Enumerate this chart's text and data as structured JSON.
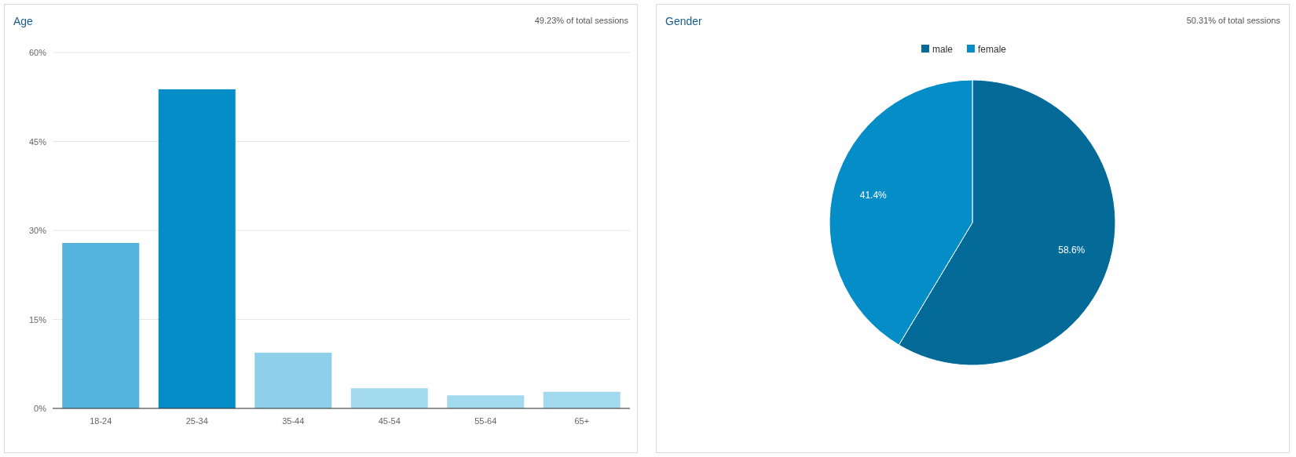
{
  "chart_data": [
    {
      "type": "bar",
      "title": "Age",
      "subtitle": "49.23% of total sessions",
      "categories": [
        "18-24",
        "25-34",
        "35-44",
        "45-54",
        "55-64",
        "65+"
      ],
      "values": [
        27.9,
        53.8,
        9.4,
        3.4,
        2.2,
        2.8
      ],
      "colors": [
        "#55b3dd",
        "#058dc7",
        "#8ecfe9",
        "#a4daef",
        "#a4daef",
        "#a4daef"
      ],
      "ylim": [
        0,
        60
      ],
      "yticks": [
        {
          "value": 0,
          "label": "0%"
        },
        {
          "value": 15,
          "label": "15%"
        },
        {
          "value": 30,
          "label": "30%"
        },
        {
          "value": 45,
          "label": "45%"
        },
        {
          "value": 60,
          "label": "60%"
        }
      ],
      "grid": "y"
    },
    {
      "type": "pie",
      "title": "Gender",
      "subtitle": "50.31% of total sessions",
      "categories": [
        "male",
        "female"
      ],
      "values": [
        58.6,
        41.4
      ],
      "colors": [
        "#046b99",
        "#058dc7"
      ],
      "value_labels": [
        "58.6%",
        "41.4%"
      ],
      "legend": "top"
    }
  ]
}
